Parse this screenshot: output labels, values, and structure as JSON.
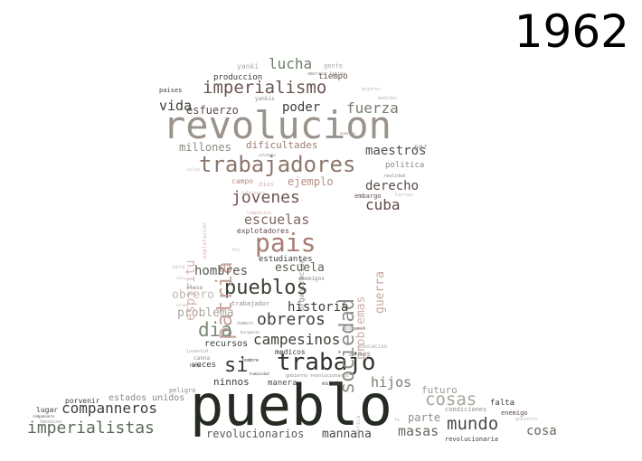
{
  "title": "1962",
  "words": [
    {
      "text": "pueblo",
      "color": "#252b22"
    },
    {
      "text": "revolucion",
      "color": "#9a938b"
    },
    {
      "text": "trabajadores",
      "color": "#8e766c"
    },
    {
      "text": "pais",
      "color": "#a67e74"
    },
    {
      "text": "pueblos",
      "color": "#3a3f36"
    },
    {
      "text": "trabajo",
      "color": "#2f342c"
    },
    {
      "text": "imperialismo",
      "color": "#6b5552"
    },
    {
      "text": "patria",
      "color": "#c7a29b"
    },
    {
      "text": "sociedad",
      "color": "#8d8f88"
    },
    {
      "text": "jovenes",
      "color": "#6e5752"
    },
    {
      "text": "dia",
      "color": "#7b8976"
    },
    {
      "text": "imperialistas",
      "color": "#5a6b57"
    },
    {
      "text": "mundo",
      "color": "#4a4a46"
    },
    {
      "text": "cosas",
      "color": "#a0a89b"
    },
    {
      "text": "obreros",
      "color": "#3e433a"
    },
    {
      "text": "companneros",
      "color": "#3b3f38"
    },
    {
      "text": "si",
      "color": "#3a3a36"
    },
    {
      "text": "lucha",
      "color": "#6c7d68"
    },
    {
      "text": "fuerza",
      "color": "#777d72"
    },
    {
      "text": "poder",
      "color": "#3c3c38"
    },
    {
      "text": "vida",
      "color": "#3c3c38"
    },
    {
      "text": "esfuerzo",
      "color": "#5b4a47"
    },
    {
      "text": "cuba",
      "color": "#5d4945"
    },
    {
      "text": "derecho",
      "color": "#5b4a47"
    },
    {
      "text": "escuelas",
      "color": "#7b6560"
    },
    {
      "text": "escuela",
      "color": "#5a6056"
    },
    {
      "text": "hombres",
      "color": "#575a52"
    },
    {
      "text": "obrero",
      "color": "#c0bcb4"
    },
    {
      "text": "historia",
      "color": "#3c3f38"
    },
    {
      "text": "campesinos",
      "color": "#3c3f38"
    },
    {
      "text": "problema",
      "color": "#a8a7a0"
    },
    {
      "text": "maestros",
      "color": "#4f524a"
    },
    {
      "text": "millones",
      "color": "#8b8a83"
    },
    {
      "text": "dificultades",
      "color": "#9d7d75"
    },
    {
      "text": "ejemplo",
      "color": "#b78d85"
    },
    {
      "text": "espiritu",
      "color": "#d4b4ad"
    },
    {
      "text": "problemas",
      "color": "#cdb0a9"
    },
    {
      "text": "guerra",
      "color": "#c9a49d"
    },
    {
      "text": "hijos",
      "color": "#748072"
    },
    {
      "text": "futuro",
      "color": "#a09a93"
    },
    {
      "text": "parte",
      "color": "#8f8d86"
    },
    {
      "text": "masas",
      "color": "#5f6a5b"
    },
    {
      "text": "mannana",
      "color": "#4a4a46"
    },
    {
      "text": "revolucionarios",
      "color": "#5f5956"
    },
    {
      "text": "estados unidos",
      "color": "#8a8a84"
    },
    {
      "text": "ninnos",
      "color": "#3c3c38"
    },
    {
      "text": "manera",
      "color": "#4a4a46"
    },
    {
      "text": "recursos",
      "color": "#3c3c38"
    },
    {
      "text": "veces",
      "color": "#3c3c38"
    },
    {
      "text": "cosa",
      "color": "#5d6b5a"
    },
    {
      "text": "produccion",
      "color": "#3c3c38"
    },
    {
      "text": "tiempo",
      "color": "#5b4a47"
    },
    {
      "text": "paises",
      "color": "#3c3c38"
    },
    {
      "text": "yankis",
      "color": "#8b8a83"
    },
    {
      "text": "yanki",
      "color": "#a8a7a0"
    },
    {
      "text": "gente",
      "color": "#a8a7a0"
    },
    {
      "text": "america latina",
      "color": "#8b8a83"
    },
    {
      "text": "mujeres",
      "color": "#c0bcb4"
    },
    {
      "text": "medidas",
      "color": "#c0bcb4"
    },
    {
      "text": "momento",
      "color": "#9a938b"
    },
    {
      "text": "soldados",
      "color": "#8b8a83"
    },
    {
      "text": "campo",
      "color": "#b78d85"
    },
    {
      "text": "dios",
      "color": "#d4b4ad"
    },
    {
      "text": "intereses",
      "color": "#d4b4ad"
    },
    {
      "text": "explotacion",
      "color": "#d4b4ad"
    },
    {
      "text": "politica",
      "color": "#8b8a83"
    },
    {
      "text": "realidad",
      "color": "#8b8a83"
    },
    {
      "text": "paz",
      "color": "#8b8a83"
    },
    {
      "text": "embargo",
      "color": "#5b4a47"
    },
    {
      "text": "fuerzas",
      "color": "#c0bcb4"
    },
    {
      "text": "culpa",
      "color": "#c7c3bc"
    },
    {
      "text": "organizacion",
      "color": "#8b8a83"
    },
    {
      "text": "campesino",
      "color": "#d4b4ad"
    },
    {
      "text": "explotadores",
      "color": "#5b4a47"
    },
    {
      "text": "estudiantes",
      "color": "#3c3c38"
    },
    {
      "text": "enemigos",
      "color": "#8b8a83"
    },
    {
      "text": "fin",
      "color": "#c0bcb4"
    },
    {
      "text": "sera",
      "color": "#c7c3bc"
    },
    {
      "text": "idea",
      "color": "#c7c3bc"
    },
    {
      "text": "clase",
      "color": "#8b8a83"
    },
    {
      "text": "trabajador",
      "color": "#8b8a83"
    },
    {
      "text": "verdad",
      "color": "#c0bcb4"
    },
    {
      "text": "numero",
      "color": "#8b8a83"
    },
    {
      "text": "burgueses",
      "color": "#8b8a83"
    },
    {
      "text": "economia",
      "color": "#8b8a83"
    },
    {
      "text": "educacion",
      "color": "#a8a7a0"
    },
    {
      "text": "medicos",
      "color": "#3c3c38"
    },
    {
      "text": "armas",
      "color": "#8b8a83"
    },
    {
      "text": "juventud",
      "color": "#a8a7a0"
    },
    {
      "text": "canna",
      "color": "#8b8a83"
    },
    {
      "text": "hora",
      "color": "#3c3c38"
    },
    {
      "text": "hombre",
      "color": "#3c3c38"
    },
    {
      "text": "humanidad",
      "color": "#5b4a47"
    },
    {
      "text": "gobierno revolucionario",
      "color": "#8b8a83"
    },
    {
      "text": "estado",
      "color": "#5b4a47"
    },
    {
      "text": "peligro",
      "color": "#8b8a83"
    },
    {
      "text": "porvenir",
      "color": "#3c3c38"
    },
    {
      "text": "lugar",
      "color": "#3c3c38"
    },
    {
      "text": "compannero",
      "color": "#5b4a47"
    },
    {
      "text": "tecnicos",
      "color": "#8b8a83"
    },
    {
      "text": "america",
      "color": "#c0bcb4"
    },
    {
      "text": "fe",
      "color": "#c0bcb4"
    },
    {
      "text": "condiciones",
      "color": "#8b8a83"
    },
    {
      "text": "falta",
      "color": "#3c3c38"
    },
    {
      "text": "enemigo",
      "color": "#5b4a47"
    },
    {
      "text": "gobierno",
      "color": "#c0bcb4"
    },
    {
      "text": "revolucionaria",
      "color": "#3c3c38"
    }
  ]
}
